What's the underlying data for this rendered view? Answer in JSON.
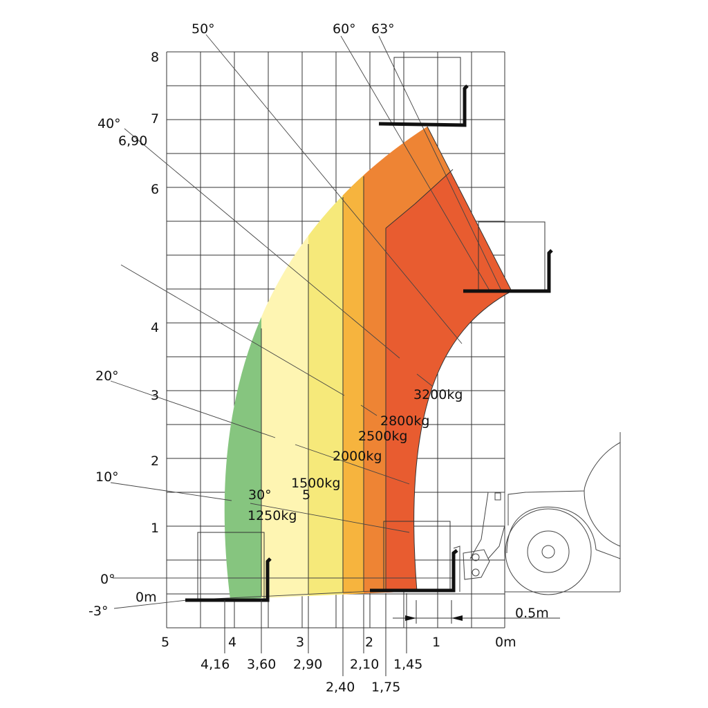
{
  "axes": {
    "y_ticks": [
      "8",
      "7",
      "6",
      "4",
      "3",
      "2",
      "1",
      "0m"
    ],
    "x_ticks": [
      "5",
      "4",
      "3",
      "2",
      "1",
      "0m"
    ]
  },
  "angle_labels": {
    "a_neg3": "-3°",
    "a0": "0°",
    "a10": "10°",
    "a20": "20°",
    "a30": "30°",
    "a40": "40°",
    "a50": "50°",
    "a60": "60°",
    "a63": "63°"
  },
  "reach_labels": {
    "h690": "6,90",
    "r5": "5"
  },
  "zone_labels": {
    "z1250": "1250kg",
    "z1500": "1500kg",
    "z2000": "2000kg",
    "z2500": "2500kg",
    "z2800": "2800kg",
    "z3200": "3200kg"
  },
  "bottom_distances": [
    "4,16",
    "3,60",
    "2,90",
    "2,40",
    "2,10",
    "1,75",
    "1,45"
  ],
  "offset_label": "0.5m",
  "zone_colors": {
    "z1250": "#86c57f",
    "z1500": "#fef5b2",
    "z2000": "#f6e97a",
    "z2500": "#f6b43e",
    "z2800": "#ee8434",
    "z3200": "#e85c30"
  }
}
